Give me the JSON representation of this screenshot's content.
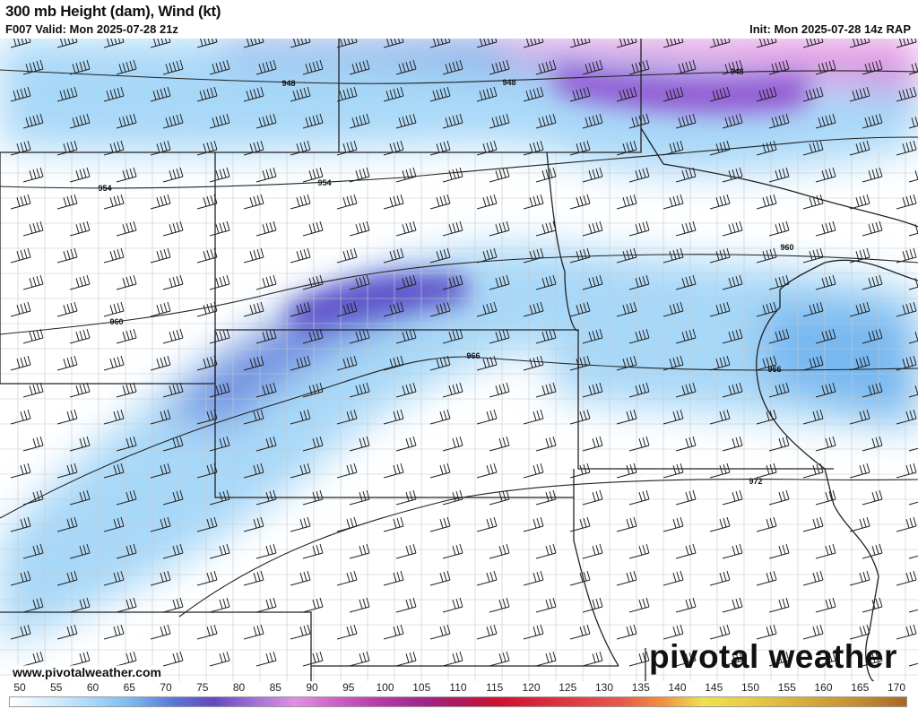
{
  "header": {
    "title": "300 mb Height (dam), Wind (kt)",
    "valid": "F007 Valid: Mon 2025-07-28 21z",
    "init": "Init: Mon 2025-07-28 14z RAP"
  },
  "map": {
    "contour_labels": [
      "948",
      "948",
      "948",
      "954",
      "954",
      "960",
      "960",
      "966",
      "966",
      "972"
    ]
  },
  "footer": {
    "website": "www.pivotalweather.com",
    "logo": "pivotal weather"
  },
  "colorbar": {
    "ticks": [
      "50",
      "55",
      "60",
      "65",
      "70",
      "75",
      "80",
      "85",
      "90",
      "95",
      "100",
      "105",
      "110",
      "115",
      "120",
      "125",
      "130",
      "135",
      "140",
      "145",
      "150",
      "155",
      "160",
      "165",
      "170"
    ],
    "colors": [
      "#ffffff",
      "#d8eefc",
      "#a8d8f8",
      "#78b8f0",
      "#5878d8",
      "#6448c0",
      "#a070d8",
      "#e090e0",
      "#d060c8",
      "#b83ca8",
      "#a02890",
      "#b01860",
      "#d01030",
      "#d82838",
      "#e04048",
      "#e85848",
      "#f09040",
      "#f0e050",
      "#e8d048",
      "#dcb840",
      "#d0a038",
      "#c08830",
      "#a86820"
    ]
  }
}
